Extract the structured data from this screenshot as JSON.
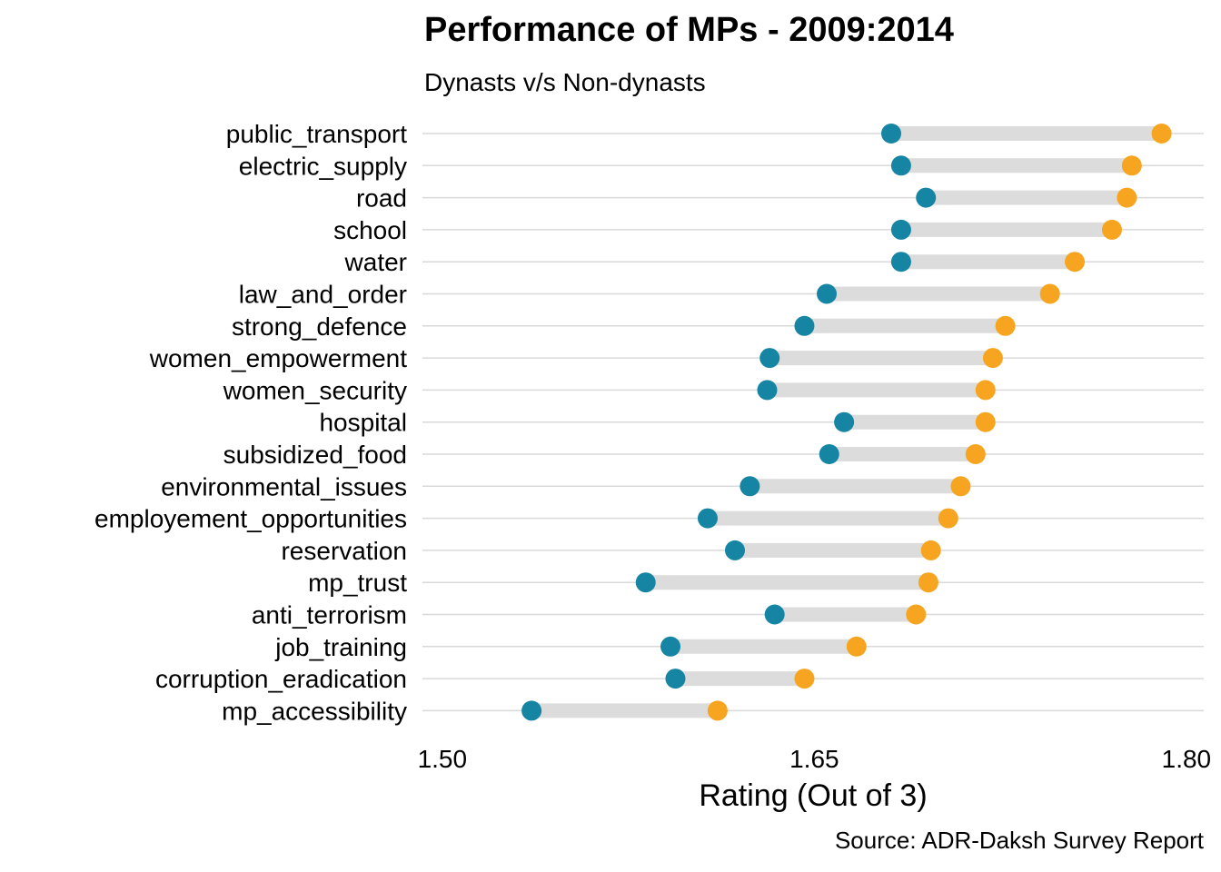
{
  "chart_data": {
    "type": "dumbbell",
    "title": "Performance of MPs - 2009:2014",
    "subtitle": "Dynasts  v/s Non-dynasts",
    "xlabel": "Rating (Out of 3)",
    "ylabel": "",
    "caption": "Source: ADR-Daksh Survey Report",
    "xlim": [
      1.492,
      1.807
    ],
    "x_ticks": [
      1.5,
      1.65,
      1.8
    ],
    "x_tick_labels": [
      "1.50",
      "1.65",
      "1.80"
    ],
    "grid": "horizontal",
    "colors": {
      "dynasts": "#1685a3",
      "non_dynasts": "#f7a520",
      "segment": "#dcdcdc",
      "gridline": "#d9d9d9"
    },
    "categories": [
      "public_transport",
      "electric_supply",
      "road",
      "school",
      "water",
      "law_and_order",
      "strong_defence",
      "women_empowerment",
      "women_security",
      "hospital",
      "subsidized_food",
      "environmental_issues",
      "employement_opportunities",
      "reservation",
      "mp_trust",
      "anti_terrorism",
      "job_training",
      "corruption_eradication",
      "mp_accessibility"
    ],
    "series": [
      {
        "values": [
          1.681,
          1.685,
          1.695,
          1.685,
          1.685,
          1.655,
          1.646,
          1.632,
          1.631,
          1.662,
          1.656,
          1.624,
          1.607,
          1.618,
          1.582,
          1.634,
          1.592,
          1.594,
          1.536
        ]
      },
      {
        "values": [
          1.79,
          1.778,
          1.776,
          1.77,
          1.755,
          1.745,
          1.727,
          1.722,
          1.719,
          1.719,
          1.715,
          1.709,
          1.704,
          1.697,
          1.696,
          1.691,
          1.667,
          1.646,
          1.611
        ]
      }
    ]
  }
}
